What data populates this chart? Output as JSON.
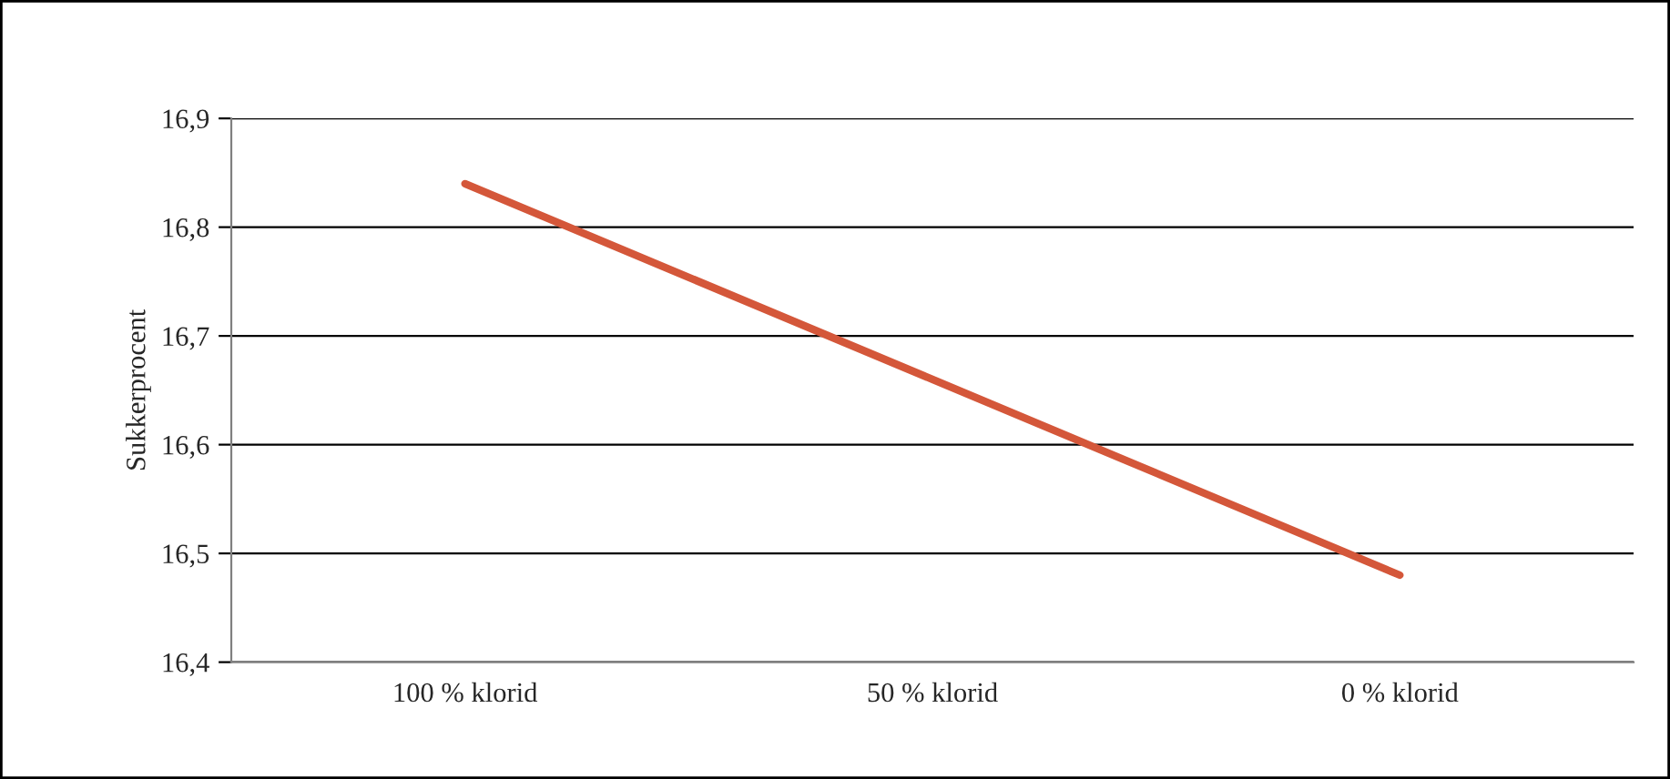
{
  "chart_data": {
    "type": "line",
    "ylabel": "Sukkerprocent",
    "categories": [
      "100 % klorid",
      "50 % klorid",
      "0 % klorid"
    ],
    "series": [
      {
        "color": "#d4573a",
        "values": [
          16.84,
          16.66,
          16.48
        ]
      }
    ],
    "ylim": [
      16.4,
      16.9
    ],
    "yticks": [
      {
        "value": 16.4,
        "label": "16,4"
      },
      {
        "value": 16.5,
        "label": "16,5"
      },
      {
        "value": 16.6,
        "label": "16,6"
      },
      {
        "value": 16.7,
        "label": "16,7"
      },
      {
        "value": 16.8,
        "label": "16,8"
      },
      {
        "value": 16.9,
        "label": "16,9"
      }
    ],
    "grid": "y",
    "legend": false,
    "marker": "none",
    "line_style": "solid"
  }
}
